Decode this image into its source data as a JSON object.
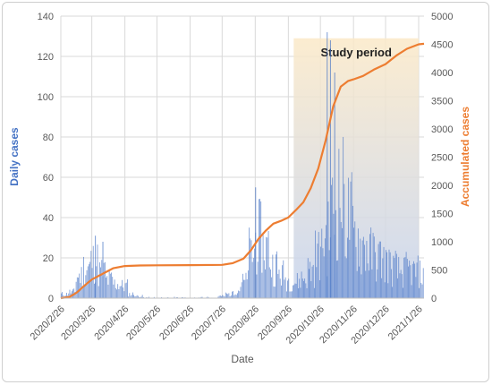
{
  "chart_data": {
    "type": "bar+line",
    "xlabel": "Date",
    "ylabel_left": "Daily cases",
    "ylabel_right": "Accumulated cases",
    "ylim_left": [
      0,
      140
    ],
    "ylim_right": [
      0,
      5000
    ],
    "yticks_left": [
      "0",
      "20",
      "40",
      "60",
      "80",
      "100",
      "120",
      "140"
    ],
    "yticks_right": [
      "0",
      "500",
      "1000",
      "1500",
      "2000",
      "2500",
      "3000",
      "3500",
      "4000",
      "4500",
      "5000"
    ],
    "xtick_labels": [
      "2020/2/26",
      "2020/3/26",
      "2020/4/26",
      "2020/5/26",
      "2020/6/26",
      "2020/7/26",
      "2020/8/26",
      "2020/9/26",
      "2020/10/26",
      "2020/11/26",
      "2020/12/26",
      "2021/1/26"
    ],
    "grid": true,
    "colors": {
      "daily": "#4472c4",
      "accumulated": "#ed7d31",
      "band_top": "#fbe9c8",
      "band_bottom": "#c5d3ee"
    },
    "study_period": {
      "label": "Study period",
      "start": "2020/10/01",
      "end": "2021/01/26"
    },
    "date_range": [
      "2020/02/26",
      "2021/01/31"
    ],
    "series": [
      {
        "type": "bar",
        "axis": "left",
        "weekly_mean_daily_cases": [
          2,
          3,
          11,
          15,
          18,
          13,
          9,
          7,
          6,
          2,
          1,
          0.5,
          0.5,
          0.3,
          0.3,
          0.5,
          0.3,
          0.3,
          0.5,
          0.5,
          0.5,
          1,
          2,
          4,
          8,
          22,
          30,
          25,
          16,
          12,
          9,
          8,
          10,
          14,
          22,
          30,
          42,
          50,
          40,
          30,
          26,
          22,
          20,
          18,
          15,
          13,
          14,
          13,
          12
        ]
      },
      {
        "type": "line",
        "axis": "right",
        "name": "Accumulated cases",
        "points": [
          {
            "x": "2020/2/26",
            "y": 0
          },
          {
            "x": "2020/3/5",
            "y": 20
          },
          {
            "x": "2020/3/12",
            "y": 100
          },
          {
            "x": "2020/3/19",
            "y": 220
          },
          {
            "x": "2020/3/26",
            "y": 330
          },
          {
            "x": "2020/4/5",
            "y": 430
          },
          {
            "x": "2020/4/15",
            "y": 530
          },
          {
            "x": "2020/4/26",
            "y": 570
          },
          {
            "x": "2020/5/10",
            "y": 580
          },
          {
            "x": "2020/5/26",
            "y": 582
          },
          {
            "x": "2020/6/26",
            "y": 585
          },
          {
            "x": "2020/7/26",
            "y": 590
          },
          {
            "x": "2020/8/5",
            "y": 620
          },
          {
            "x": "2020/8/15",
            "y": 700
          },
          {
            "x": "2020/8/22",
            "y": 850
          },
          {
            "x": "2020/8/29",
            "y": 1050
          },
          {
            "x": "2020/9/5",
            "y": 1200
          },
          {
            "x": "2020/9/12",
            "y": 1320
          },
          {
            "x": "2020/9/19",
            "y": 1370
          },
          {
            "x": "2020/9/26",
            "y": 1430
          },
          {
            "x": "2020/10/3",
            "y": 1560
          },
          {
            "x": "2020/10/10",
            "y": 1700
          },
          {
            "x": "2020/10/17",
            "y": 1950
          },
          {
            "x": "2020/10/24",
            "y": 2300
          },
          {
            "x": "2020/10/31",
            "y": 2800
          },
          {
            "x": "2020/11/7",
            "y": 3400
          },
          {
            "x": "2020/11/14",
            "y": 3750
          },
          {
            "x": "2020/11/21",
            "y": 3850
          },
          {
            "x": "2020/11/26",
            "y": 3880
          },
          {
            "x": "2020/12/5",
            "y": 3940
          },
          {
            "x": "2020/12/15",
            "y": 4050
          },
          {
            "x": "2020/12/26",
            "y": 4150
          },
          {
            "x": "2021/1/5",
            "y": 4300
          },
          {
            "x": "2021/1/15",
            "y": 4420
          },
          {
            "x": "2021/1/26",
            "y": 4500
          },
          {
            "x": "2021/1/31",
            "y": 4510
          }
        ]
      }
    ]
  }
}
